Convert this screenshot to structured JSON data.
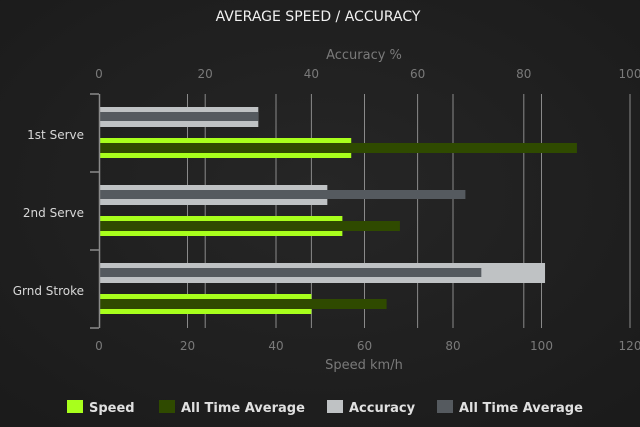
{
  "chart_data": {
    "type": "bar",
    "orientation": "horizontal",
    "title": "AVERAGE SPEED / ACCURACY",
    "categories": [
      "1st Serve",
      "2nd Serve",
      "Grnd Stroke"
    ],
    "top_axis": {
      "label": "Accuracy %",
      "range": [
        0,
        100
      ],
      "ticks": [
        "0",
        "20",
        "40",
        "60",
        "80",
        "100"
      ]
    },
    "bottom_axis": {
      "label": "Speed km/h",
      "range": [
        0,
        120
      ],
      "ticks": [
        "0",
        "20",
        "40",
        "60",
        "80",
        "100",
        "120"
      ]
    },
    "grid": true,
    "legend_position": "bottom",
    "series": [
      {
        "name": "Speed",
        "axis": "bottom",
        "color": "#a8ff1c",
        "values": [
          57,
          55,
          48
        ]
      },
      {
        "name": "All Time Average",
        "axis": "bottom",
        "color": "#2f4a00",
        "values": [
          108,
          68,
          65
        ]
      },
      {
        "name": "Accuracy",
        "axis": "top",
        "color": "#bfc2c4",
        "values": [
          30,
          43,
          84
        ]
      },
      {
        "name": "All Time Average",
        "axis": "top",
        "color": "#555a5f",
        "values": [
          30,
          69,
          72
        ]
      }
    ]
  }
}
